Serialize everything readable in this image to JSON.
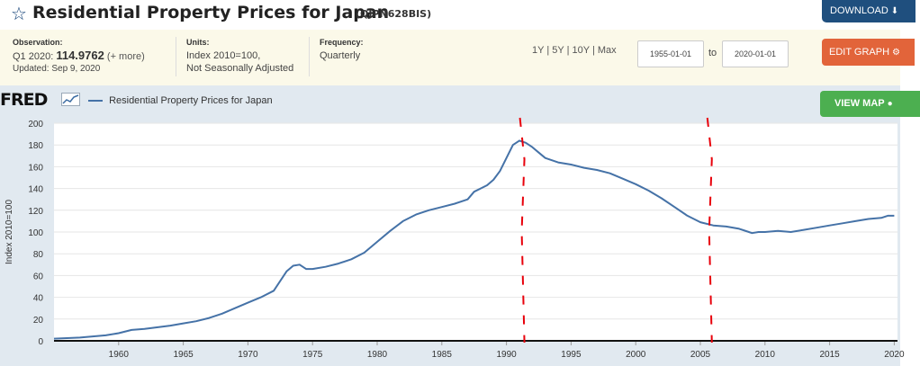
{
  "header": {
    "star_icon": "☆",
    "title": "Residential Property Prices for Japan",
    "series_id": "(QJPN628BIS)",
    "download_label": "DOWNLOAD",
    "download_icon": "⬇"
  },
  "info": {
    "observation_label": "Observation:",
    "observation_period": "Q1 2020:",
    "observation_value": "114.9762",
    "observation_more": "(+ more)",
    "updated": "Updated: Sep 9, 2020",
    "units_label": "Units:",
    "units_line1": "Index 2010=100,",
    "units_line2": "Not Seasonally Adjusted",
    "frequency_label": "Frequency:",
    "frequency_value": "Quarterly"
  },
  "controls": {
    "range_1y": "1Y",
    "range_5y": "5Y",
    "range_10y": "10Y",
    "range_max": "Max",
    "separator": "|",
    "date_from": "1955-01-01",
    "to_label": "to",
    "date_to": "2020-01-01",
    "edit_label": "EDIT GRAPH",
    "edit_icon": "⚙",
    "view_map_label": "VIEW MAP",
    "view_map_icon": "●"
  },
  "branding": {
    "fred_text": "FRED"
  },
  "colors": {
    "series": "#4572a7",
    "annotation": "#e8000b",
    "chart_background": "#e1e9f0"
  },
  "chart_data": {
    "type": "line",
    "title": "",
    "xlabel": "",
    "ylabel": "Index 2010=100",
    "xlim": [
      1955.0,
      2020.25
    ],
    "ylim": [
      0,
      200
    ],
    "x_ticks": [
      1960,
      1965,
      1970,
      1975,
      1980,
      1985,
      1990,
      1995,
      2000,
      2005,
      2010,
      2015,
      2020
    ],
    "y_ticks": [
      0,
      20,
      40,
      60,
      80,
      100,
      120,
      140,
      160,
      180,
      200
    ],
    "grid": "horizontal",
    "legend": "top-left",
    "series": [
      {
        "name": "Residential Property Prices for Japan",
        "x": [
          1955.0,
          1957.0,
          1959.0,
          1960.0,
          1961.0,
          1962.0,
          1964.0,
          1965.0,
          1966.0,
          1967.0,
          1968.0,
          1969.0,
          1970.0,
          1971.0,
          1972.0,
          1972.5,
          1973.0,
          1973.5,
          1974.0,
          1974.5,
          1975.0,
          1976.0,
          1977.0,
          1978.0,
          1979.0,
          1980.0,
          1981.0,
          1982.0,
          1983.0,
          1984.0,
          1985.0,
          1986.0,
          1987.0,
          1987.5,
          1988.0,
          1988.5,
          1989.0,
          1989.5,
          1990.0,
          1990.5,
          1991.0,
          1991.5,
          1992.0,
          1992.5,
          1993.0,
          1994.0,
          1995.0,
          1996.0,
          1997.0,
          1998.0,
          1999.0,
          2000.0,
          2001.0,
          2002.0,
          2003.0,
          2004.0,
          2005.0,
          2006.0,
          2007.0,
          2008.0,
          2008.75,
          2009.0,
          2009.5,
          2010.0,
          2011.0,
          2012.0,
          2013.0,
          2014.0,
          2015.0,
          2016.0,
          2017.0,
          2018.0,
          2019.0,
          2019.5,
          2020.0
        ],
        "values": [
          2,
          3,
          5,
          7,
          10,
          11,
          14,
          16,
          18,
          21,
          25,
          30,
          35,
          40,
          46,
          55,
          64,
          69,
          70,
          66,
          66,
          68,
          71,
          75,
          81,
          91,
          101,
          110,
          116,
          120,
          123,
          126,
          130,
          137,
          140,
          143,
          148,
          156,
          168,
          180,
          184,
          182,
          178,
          173,
          168,
          164,
          162,
          159,
          157,
          154,
          149,
          144,
          138,
          131,
          123,
          115,
          109,
          106,
          105,
          103,
          100,
          99,
          100,
          100,
          101,
          100,
          102,
          104,
          106,
          108,
          110,
          112,
          113,
          115,
          115
        ]
      }
    ],
    "annotations": [
      {
        "type": "vertical-dashed-line",
        "x": 1991.25
      },
      {
        "type": "vertical-dashed-line",
        "x": 2005.75
      }
    ]
  }
}
